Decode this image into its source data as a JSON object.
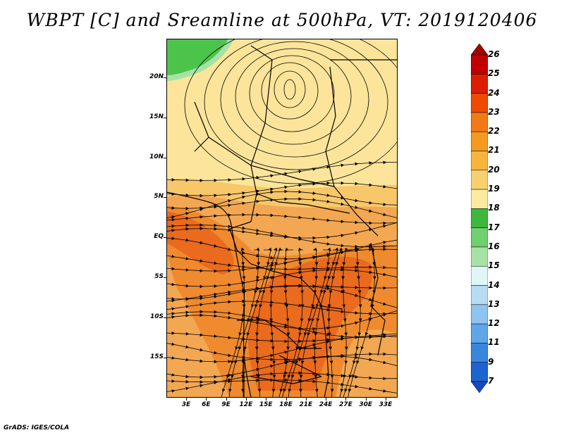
{
  "title": "WBPT [C] and Sreamline at 500hPa, VT: 2019120406",
  "credit": "GrADS: IGES/COLA",
  "map": {
    "lat_labels": [
      "20N",
      "15N",
      "10N",
      "5N",
      "EQ",
      "5S",
      "10S",
      "15S"
    ],
    "lon_labels": [
      "3E",
      "6E",
      "9E",
      "12E",
      "15E",
      "18E",
      "21E",
      "24E",
      "27E",
      "30E",
      "33E"
    ],
    "fill_regions": [
      {
        "name": "green-17-northwest",
        "class": "17-18",
        "color": "#4cc44c"
      },
      {
        "name": "yellow-19-north",
        "class": "18-19",
        "color": "#fce59a"
      },
      {
        "name": "light-orange-20-band",
        "class": "19-20",
        "color": "#f7c76a"
      },
      {
        "name": "orange-21-west",
        "class": "20-21",
        "color": "#f3a752"
      },
      {
        "name": "orange-22-central",
        "class": "21-22",
        "color": "#ef8a2f"
      },
      {
        "name": "dark-orange-23-core",
        "class": "22-23",
        "color": "#ea6a1e"
      }
    ],
    "features": [
      "cyclonic-vortex-north",
      "streamlines",
      "country-borders",
      "coastline"
    ]
  },
  "colorbar": {
    "levels": [
      "26",
      "25",
      "24",
      "23",
      "22",
      "21",
      "20",
      "19",
      "18",
      "17",
      "16",
      "15",
      "14",
      "13",
      "12",
      "11",
      "9",
      "7"
    ],
    "colors": [
      "#a50000",
      "#c00000",
      "#dc1e00",
      "#ee4a00",
      "#f07a14",
      "#f49a20",
      "#f6b63c",
      "#f8d070",
      "#fceaa0",
      "#3db83d",
      "#6ed06e",
      "#a6e2a6",
      "#dff6f6",
      "#b8dcf2",
      "#8ec4ee",
      "#5ea6e8",
      "#3a86de",
      "#1e64d0",
      "#1848c0"
    ]
  }
}
